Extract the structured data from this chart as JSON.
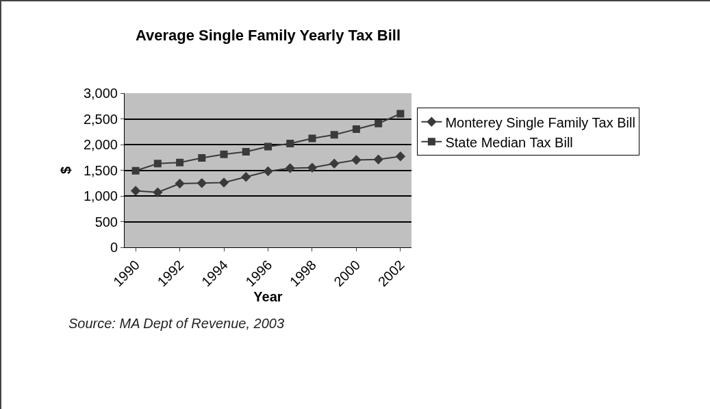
{
  "chart_data": {
    "type": "line",
    "title": "Average Single Family Yearly Tax Bill",
    "xlabel": "Year",
    "ylabel": "$",
    "categories": [
      "1990",
      null,
      "1992",
      null,
      "1994",
      null,
      "1996",
      null,
      "1998",
      null,
      "2000",
      null,
      "2002"
    ],
    "series": [
      {
        "name": "Monterey Single Family Tax Bill",
        "color": "#3a3a3a",
        "marker": "diamond",
        "values": [
          1100,
          1070,
          1240,
          1250,
          1260,
          1370,
          1480,
          1540,
          1550,
          1630,
          1700,
          1710,
          1770
        ]
      },
      {
        "name": "State Median Tax Bill",
        "color": "#3a3a3a",
        "marker": "square",
        "values": [
          1490,
          1630,
          1650,
          1740,
          1810,
          1860,
          1960,
          2020,
          2120,
          2190,
          2300,
          2410,
          2600
        ]
      }
    ],
    "ylim": [
      0,
      3000
    ],
    "yticks": [
      {
        "value": 0,
        "label": "0"
      },
      {
        "value": 500,
        "label": "500"
      },
      {
        "value": 1000,
        "label": "1,000"
      },
      {
        "value": 1500,
        "label": "1,500"
      },
      {
        "value": 2000,
        "label": "2,000"
      },
      {
        "value": 2500,
        "label": "2,500"
      },
      {
        "value": 3000,
        "label": "3,000"
      }
    ],
    "grid": "y",
    "legend": "right",
    "annotations": [
      "Source: MA Dept of Revenue, 2003"
    ]
  }
}
